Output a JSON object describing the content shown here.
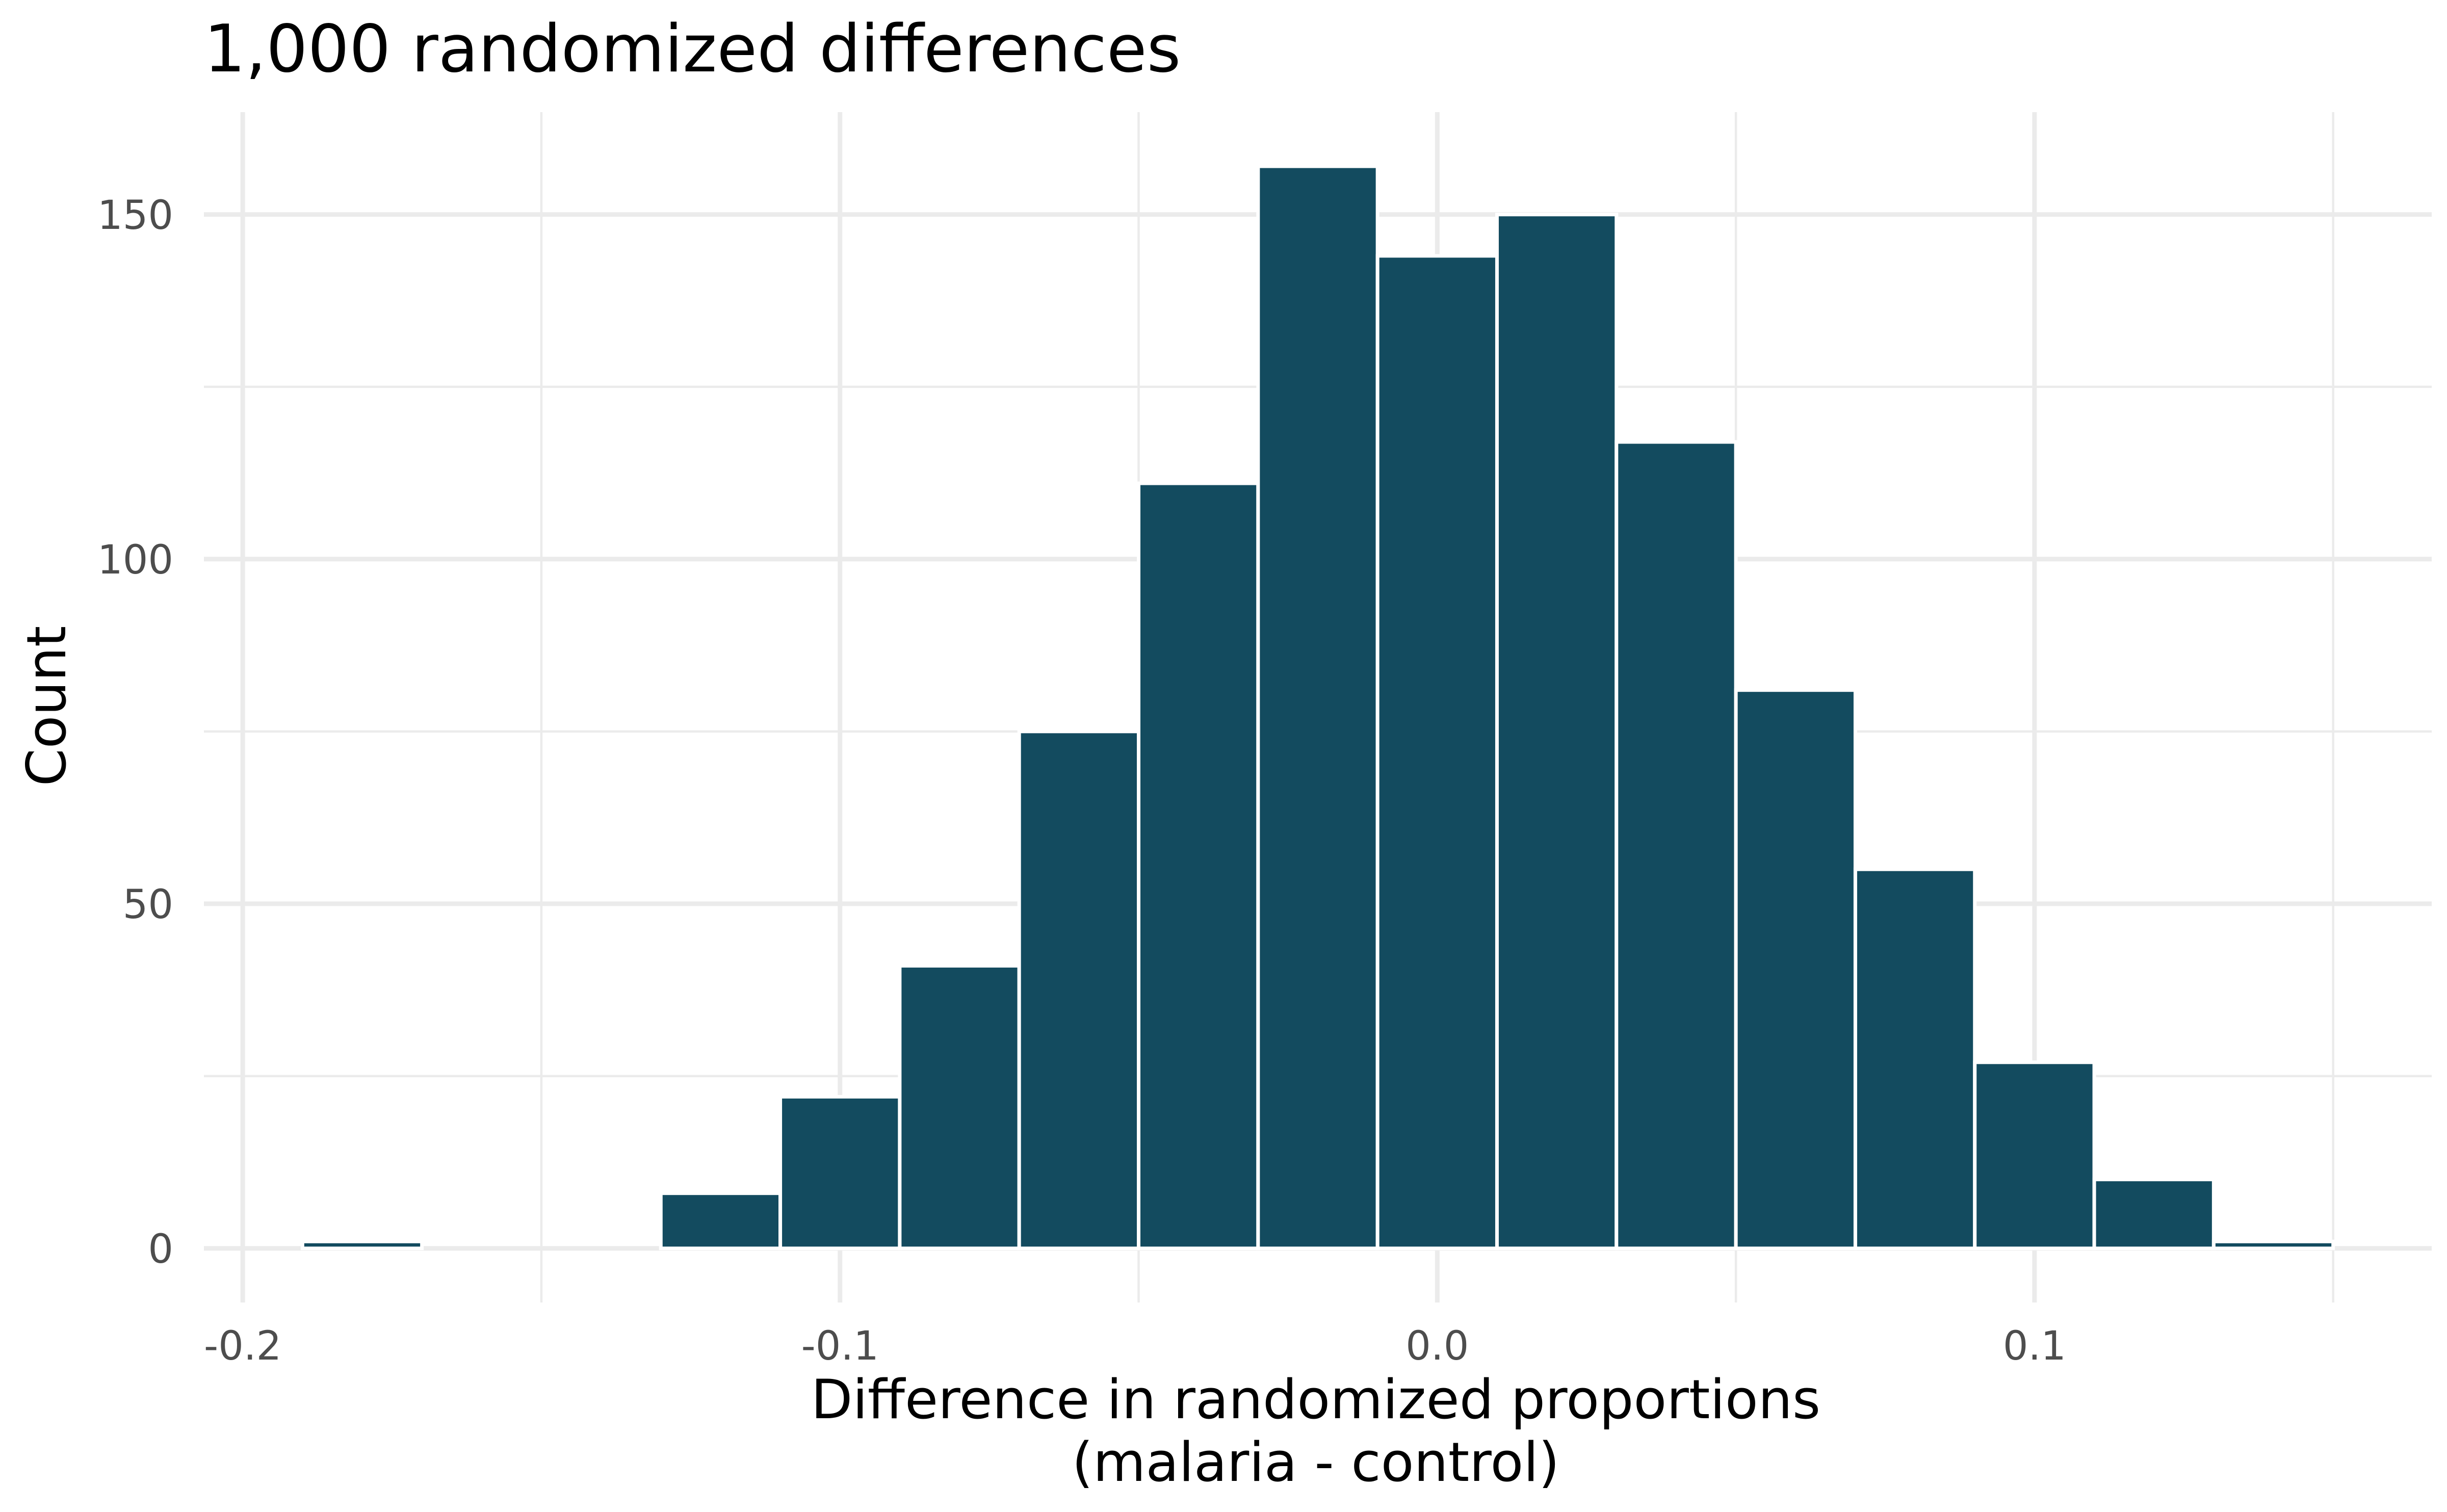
{
  "chart_data": {
    "type": "bar",
    "title": "1,000 randomized differences",
    "xlabel": "Difference in randomized proportions",
    "xlabel_line2": "(malaria - control)",
    "ylabel": "Count",
    "bin_width": 0.02,
    "bins": [
      {
        "x_start": -0.19,
        "x_end": -0.17,
        "count": 1
      },
      {
        "x_start": -0.17,
        "x_end": -0.15,
        "count": 0
      },
      {
        "x_start": -0.15,
        "x_end": -0.13,
        "count": 0
      },
      {
        "x_start": -0.13,
        "x_end": -0.11,
        "count": 8
      },
      {
        "x_start": -0.11,
        "x_end": -0.09,
        "count": 22
      },
      {
        "x_start": -0.09,
        "x_end": -0.07,
        "count": 41
      },
      {
        "x_start": -0.07,
        "x_end": -0.05,
        "count": 75
      },
      {
        "x_start": -0.05,
        "x_end": -0.03,
        "count": 111
      },
      {
        "x_start": -0.03,
        "x_end": -0.01,
        "count": 157
      },
      {
        "x_start": -0.01,
        "x_end": 0.01,
        "count": 144
      },
      {
        "x_start": 0.01,
        "x_end": 0.03,
        "count": 150
      },
      {
        "x_start": 0.03,
        "x_end": 0.05,
        "count": 117
      },
      {
        "x_start": 0.05,
        "x_end": 0.07,
        "count": 81
      },
      {
        "x_start": 0.07,
        "x_end": 0.09,
        "count": 55
      },
      {
        "x_start": 0.09,
        "x_end": 0.11,
        "count": 27
      },
      {
        "x_start": 0.11,
        "x_end": 0.13,
        "count": 10
      },
      {
        "x_start": 0.13,
        "x_end": 0.15,
        "count": 1
      }
    ],
    "x_ticks": [
      {
        "value": -0.2,
        "label": "-0.2"
      },
      {
        "value": -0.1,
        "label": "-0.1"
      },
      {
        "value": 0.0,
        "label": "0.0"
      },
      {
        "value": 0.1,
        "label": "0.1"
      }
    ],
    "y_ticks": [
      {
        "value": 0,
        "label": "0"
      },
      {
        "value": 50,
        "label": "50"
      },
      {
        "value": 100,
        "label": "100"
      },
      {
        "value": 150,
        "label": "150"
      }
    ],
    "xlim": [
      -0.2065,
      0.1665
    ],
    "ylim": [
      -7.85,
      164.85
    ],
    "grid": true,
    "bar_color": "#134b5f",
    "bar_outline_color": "#ffffff"
  }
}
